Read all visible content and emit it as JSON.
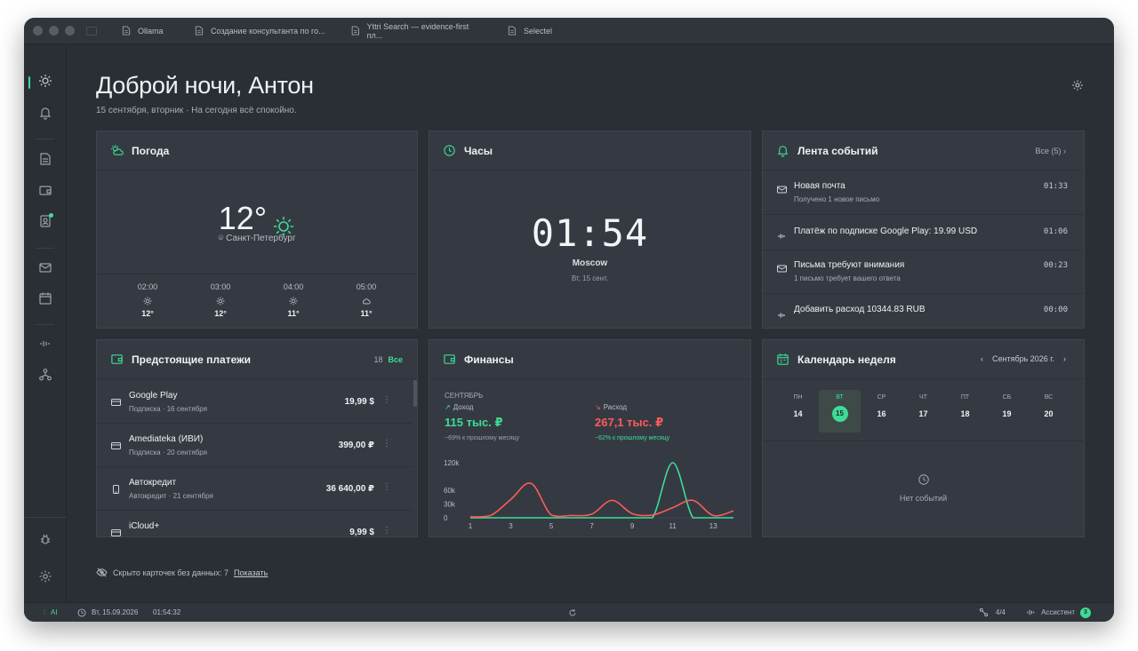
{
  "tabs": [
    {
      "label": "Ollama"
    },
    {
      "label": "Создание консультанта по го..."
    },
    {
      "label": "Yttri Search — evidence-first пл..."
    },
    {
      "label": "Selectel"
    }
  ],
  "header": {
    "greeting": "Доброй ночи, Антон",
    "subtitle": "15 сентября, вторник · На сегодня всё спокойно."
  },
  "weather": {
    "title": "Погода",
    "temp": "12°",
    "city": "Санкт-Петербург",
    "hours": [
      {
        "time": "02:00",
        "icon": "sun-icon",
        "temp": "12°"
      },
      {
        "time": "03:00",
        "icon": "sun-icon",
        "temp": "12°"
      },
      {
        "time": "04:00",
        "icon": "sun-icon",
        "temp": "11°"
      },
      {
        "time": "05:00",
        "icon": "cloud-icon",
        "temp": "11°"
      }
    ]
  },
  "clock": {
    "title": "Часы",
    "time": "01:54",
    "city": "Moscow",
    "date": "Вт, 15 сент."
  },
  "feed": {
    "title": "Лента событий",
    "all_label": "Все (5)",
    "items": [
      {
        "icon": "mail-icon",
        "title": "Новая почта",
        "sub": "Получено 1 новое письмо",
        "time": "01:33"
      },
      {
        "icon": "wave-icon",
        "title": "Платёж по подписке Google Play: 19.99 USD",
        "sub": "",
        "time": "01:06"
      },
      {
        "icon": "mail-icon",
        "title": "Письма требуют внимания",
        "sub": "1 письмо требует вашего ответа",
        "time": "00:23"
      },
      {
        "icon": "wave-icon",
        "title": "Добавить расход 10344.83 RUB",
        "sub": "",
        "time": "00:00"
      }
    ]
  },
  "payments": {
    "title": "Предстоящие платежи",
    "count": "18",
    "all_label": "Все",
    "items": [
      {
        "name": "Google Play",
        "sub": "Подписка · 16 сентября",
        "amount": "19,99 $",
        "icon": "card-icon"
      },
      {
        "name": "Amediateka (ИВИ)",
        "sub": "Подписка · 20 сентября",
        "amount": "399,00 ₽",
        "icon": "card-icon"
      },
      {
        "name": "Автокредит",
        "sub": "Автокредит · 21 сентября",
        "amount": "36 640,00 ₽",
        "icon": "phone-icon"
      },
      {
        "name": "iCloud+",
        "sub": "",
        "amount": "9,99 $",
        "icon": "card-icon"
      }
    ]
  },
  "finance": {
    "title": "Финансы",
    "month": "СЕНТЯБРЬ",
    "income_label": "Доход",
    "income_value": "115 тыс. ₽",
    "income_note": "−69% к прошлому месяцу",
    "expense_label": "Расход",
    "expense_value": "267,1 тыс. ₽",
    "expense_note": "−62% к прошлому месяцу",
    "colors": {
      "income": "#3ddc97",
      "expense": "#ff5a5a"
    }
  },
  "chart_data": {
    "type": "line",
    "x": [
      1,
      2,
      3,
      4,
      5,
      6,
      7,
      8,
      9,
      10,
      11,
      12,
      13,
      14
    ],
    "x_ticks": [
      "1",
      "3",
      "5",
      "7",
      "9",
      "11",
      "13"
    ],
    "y_ticks": [
      "120k",
      "60k",
      "30k",
      "0"
    ],
    "ylim": [
      0,
      120000
    ],
    "series": [
      {
        "name": "Доход",
        "color": "#3ddc97",
        "values": [
          0,
          0,
          0,
          0,
          0,
          0,
          0,
          0,
          0,
          0,
          120000,
          0,
          0,
          0
        ]
      },
      {
        "name": "Расход",
        "color": "#ff5a5a",
        "values": [
          2000,
          5000,
          40000,
          75000,
          6000,
          5000,
          8000,
          38000,
          9000,
          6000,
          22000,
          38000,
          5000,
          15000
        ]
      }
    ]
  },
  "calendar": {
    "title": "Календарь неделя",
    "month_label": "Сентябрь 2026 г.",
    "days": [
      {
        "dn": "ПН",
        "dd": "14"
      },
      {
        "dn": "ВТ",
        "dd": "15",
        "active": true
      },
      {
        "dn": "СР",
        "dd": "16"
      },
      {
        "dn": "ЧТ",
        "dd": "17"
      },
      {
        "dn": "ПТ",
        "dd": "18"
      },
      {
        "dn": "СБ",
        "dd": "19"
      },
      {
        "dn": "ВС",
        "dd": "20"
      }
    ],
    "empty_label": "Нет событий"
  },
  "hidden_cards": {
    "text": "Скрыто карточек без данных: 7",
    "link": "Показать"
  },
  "statusbar": {
    "ai": "AI",
    "date": "Вт, 15.09.2026",
    "time": "01:54:32",
    "net": "4/4",
    "assistant": "Ассистент",
    "assistant_badge": "3"
  }
}
